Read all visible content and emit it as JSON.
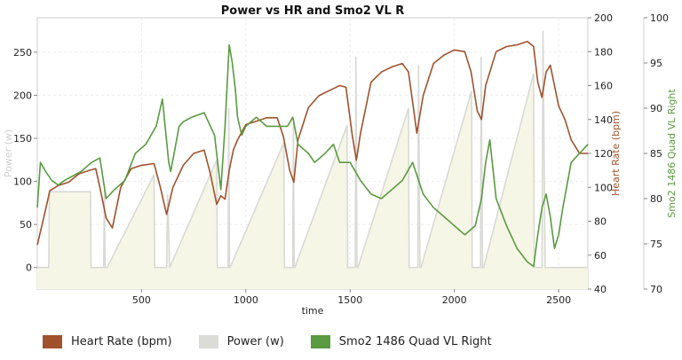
{
  "chart_data": {
    "type": "line",
    "title": "Power vs HR and Smo2 VL R",
    "xlabel": "time",
    "xlim": [
      0,
      2640
    ],
    "x_ticks": [
      500,
      1000,
      1500,
      2000,
      2500
    ],
    "y_left": {
      "label": "Power (w)",
      "lim": [
        -25,
        290
      ],
      "ticks": [
        0,
        50,
        100,
        150,
        200,
        250
      ]
    },
    "y_right_hr": {
      "label": "Heart Rate (bpm)",
      "lim": [
        40,
        200
      ],
      "ticks": [
        40,
        60,
        80,
        100,
        120,
        140,
        160,
        180,
        200
      ]
    },
    "y_right_smo2": {
      "label": "Smo2 1486 Quad VL Right",
      "lim": [
        70,
        100
      ],
      "ticks": [
        70,
        75,
        80,
        85,
        90,
        95,
        100
      ]
    },
    "grid": true,
    "legend_position": "bottom",
    "series": [
      {
        "name": "Heart Rate (bpm)",
        "axis": "hr",
        "color": "#a0522d",
        "x": [
          0,
          40,
          60,
          100,
          150,
          200,
          250,
          280,
          300,
          330,
          360,
          400,
          450,
          500,
          560,
          590,
          620,
          650,
          700,
          750,
          800,
          830,
          860,
          880,
          900,
          920,
          940,
          960,
          1000,
          1050,
          1100,
          1150,
          1180,
          1210,
          1230,
          1250,
          1300,
          1350,
          1400,
          1450,
          1480,
          1510,
          1530,
          1550,
          1600,
          1650,
          1700,
          1750,
          1780,
          1800,
          1820,
          1850,
          1900,
          1950,
          2000,
          2050,
          2080,
          2110,
          2130,
          2150,
          2200,
          2250,
          2300,
          2350,
          2380,
          2400,
          2420,
          2440,
          2460,
          2480,
          2500,
          2530,
          2560,
          2600,
          2640
        ],
        "y": [
          66,
          87,
          98,
          101,
          103,
          108,
          110,
          111,
          100,
          82,
          76,
          100,
          111,
          113,
          114,
          100,
          84,
          100,
          113,
          120,
          122,
          108,
          90,
          95,
          93,
          110,
          122,
          128,
          137,
          139,
          141,
          141,
          130,
          110,
          103,
          128,
          147,
          154,
          157,
          160,
          159,
          131,
          116,
          132,
          162,
          168,
          171,
          173,
          168,
          150,
          132,
          154,
          173,
          178,
          181,
          180,
          168,
          145,
          140,
          160,
          180,
          183,
          184,
          186,
          183,
          162,
          153,
          168,
          172,
          160,
          148,
          140,
          128,
          120,
          120
        ]
      },
      {
        "name": "Power (w)",
        "axis": "power",
        "color": "#d9d9d6",
        "x": [
          0,
          55,
          58,
          255,
          258,
          318,
          322,
          325,
          335,
          560,
          563,
          620,
          625,
          635,
          860,
          863,
          915,
          918,
          922,
          925,
          1182,
          1185,
          1225,
          1228,
          1232,
          1235,
          1485,
          1488,
          1525,
          1528,
          1533,
          1537,
          1780,
          1783,
          1825,
          1828,
          1835,
          1840,
          2082,
          2085,
          2125,
          2128,
          2135,
          2140,
          2380,
          2383,
          2400,
          2420,
          2425,
          2435,
          2440,
          2620,
          2640
        ],
        "y": [
          0,
          0,
          88,
          88,
          0,
          0,
          90,
          0,
          0,
          108,
          0,
          0,
          85,
          0,
          125,
          0,
          0,
          185,
          0,
          0,
          145,
          0,
          0,
          170,
          0,
          0,
          165,
          0,
          0,
          245,
          0,
          0,
          185,
          0,
          0,
          235,
          0,
          0,
          205,
          0,
          0,
          245,
          0,
          0,
          225,
          0,
          0,
          0,
          275,
          0,
          0,
          0,
          0
        ]
      },
      {
        "name": "Smo2 1486 Quad VL Right",
        "axis": "smo2",
        "color": "#5a9a40",
        "x": [
          0,
          15,
          40,
          70,
          100,
          130,
          170,
          210,
          260,
          300,
          330,
          370,
          420,
          470,
          520,
          570,
          600,
          630,
          640,
          680,
          700,
          740,
          800,
          850,
          880,
          900,
          920,
          935,
          950,
          960,
          980,
          1000,
          1050,
          1100,
          1150,
          1200,
          1225,
          1250,
          1300,
          1330,
          1380,
          1420,
          1450,
          1500,
          1550,
          1600,
          1650,
          1700,
          1750,
          1800,
          1850,
          1900,
          1950,
          2000,
          2050,
          2100,
          2130,
          2150,
          2170,
          2200,
          2250,
          2300,
          2350,
          2380,
          2400,
          2420,
          2440,
          2460,
          2480,
          2500,
          2520,
          2560,
          2600,
          2640
        ],
        "y": [
          79,
          84,
          83,
          82,
          81.5,
          82,
          82.5,
          83,
          84,
          84.5,
          80,
          81,
          82,
          85,
          86,
          88,
          91,
          84,
          83,
          88,
          88.5,
          89,
          89.5,
          87,
          81,
          88,
          97,
          95,
          92,
          89,
          87,
          88,
          89,
          88,
          88,
          88,
          89,
          86,
          85,
          84,
          85,
          86,
          84,
          84,
          82,
          80.5,
          80,
          81,
          82,
          84,
          80.5,
          79,
          78,
          77,
          76,
          77,
          80,
          84,
          86.5,
          80,
          77,
          74.5,
          73,
          72.5,
          76,
          79,
          80.5,
          78,
          74.5,
          76,
          79,
          84,
          85,
          86
        ]
      }
    ]
  }
}
